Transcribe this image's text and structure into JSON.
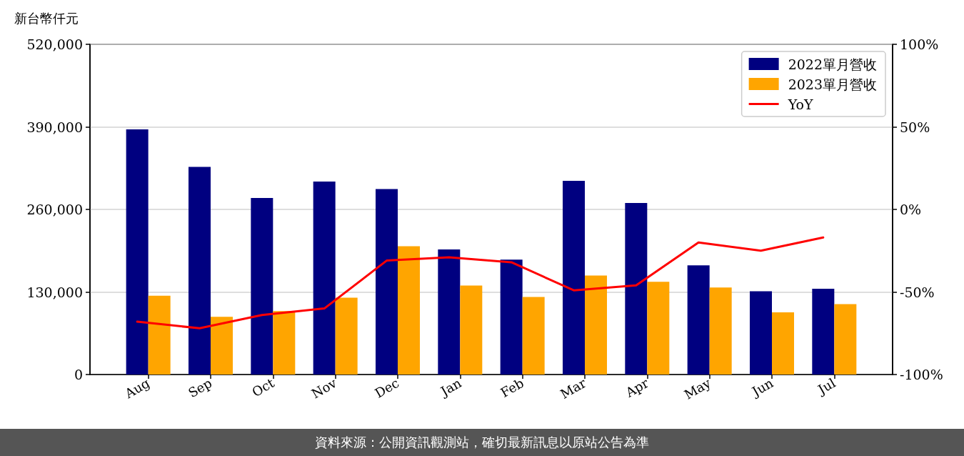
{
  "chart_data": {
    "type": "bar",
    "ylabel": "新台幣仟元",
    "categories": [
      "Aug",
      "Sep",
      "Oct",
      "Nov",
      "Dec",
      "Jan",
      "Feb",
      "Mar",
      "Apr",
      "May",
      "Jun",
      "Jul"
    ],
    "series": [
      {
        "name": "2022單月營收",
        "color": "#000080",
        "values": [
          386000,
          327000,
          278000,
          304000,
          292000,
          197000,
          181000,
          305000,
          270000,
          172000,
          131000,
          135000
        ]
      },
      {
        "name": "2023單月營收",
        "color": "#ffa500",
        "values": [
          124000,
          91000,
          100000,
          121000,
          202000,
          140000,
          122000,
          156000,
          146000,
          137000,
          98000,
          111000
        ]
      },
      {
        "name": "YoY",
        "type": "line",
        "axis": "y2",
        "color": "#ff0000",
        "values": [
          -68,
          -72,
          -64,
          -60,
          -31,
          -29,
          -32,
          -49,
          -46,
          -20,
          -25,
          -17
        ]
      }
    ],
    "ylim": [
      0,
      520000
    ],
    "yticks": [
      0,
      {
        "value": 130000,
        "label": "130,000"
      },
      {
        "value": 260000,
        "label": "260,000"
      },
      {
        "value": 390000,
        "label": "390,000"
      },
      {
        "value": 520000,
        "label": "520,000"
      }
    ],
    "y2lim": [
      -100,
      100
    ],
    "y2ticks": [
      {
        "value": -100,
        "label": "-100%"
      },
      {
        "value": -50,
        "label": "-50%"
      },
      {
        "value": 0,
        "label": "0%"
      },
      {
        "value": 50,
        "label": "50%"
      },
      {
        "value": 100,
        "label": "100%"
      }
    ],
    "grid": "y",
    "legend": "top right",
    "marker": "none",
    "line_style": "solid",
    "annotations": [
      "資料來源：公開資訊觀測站，確切最新訊息以原站公告為準"
    ]
  }
}
